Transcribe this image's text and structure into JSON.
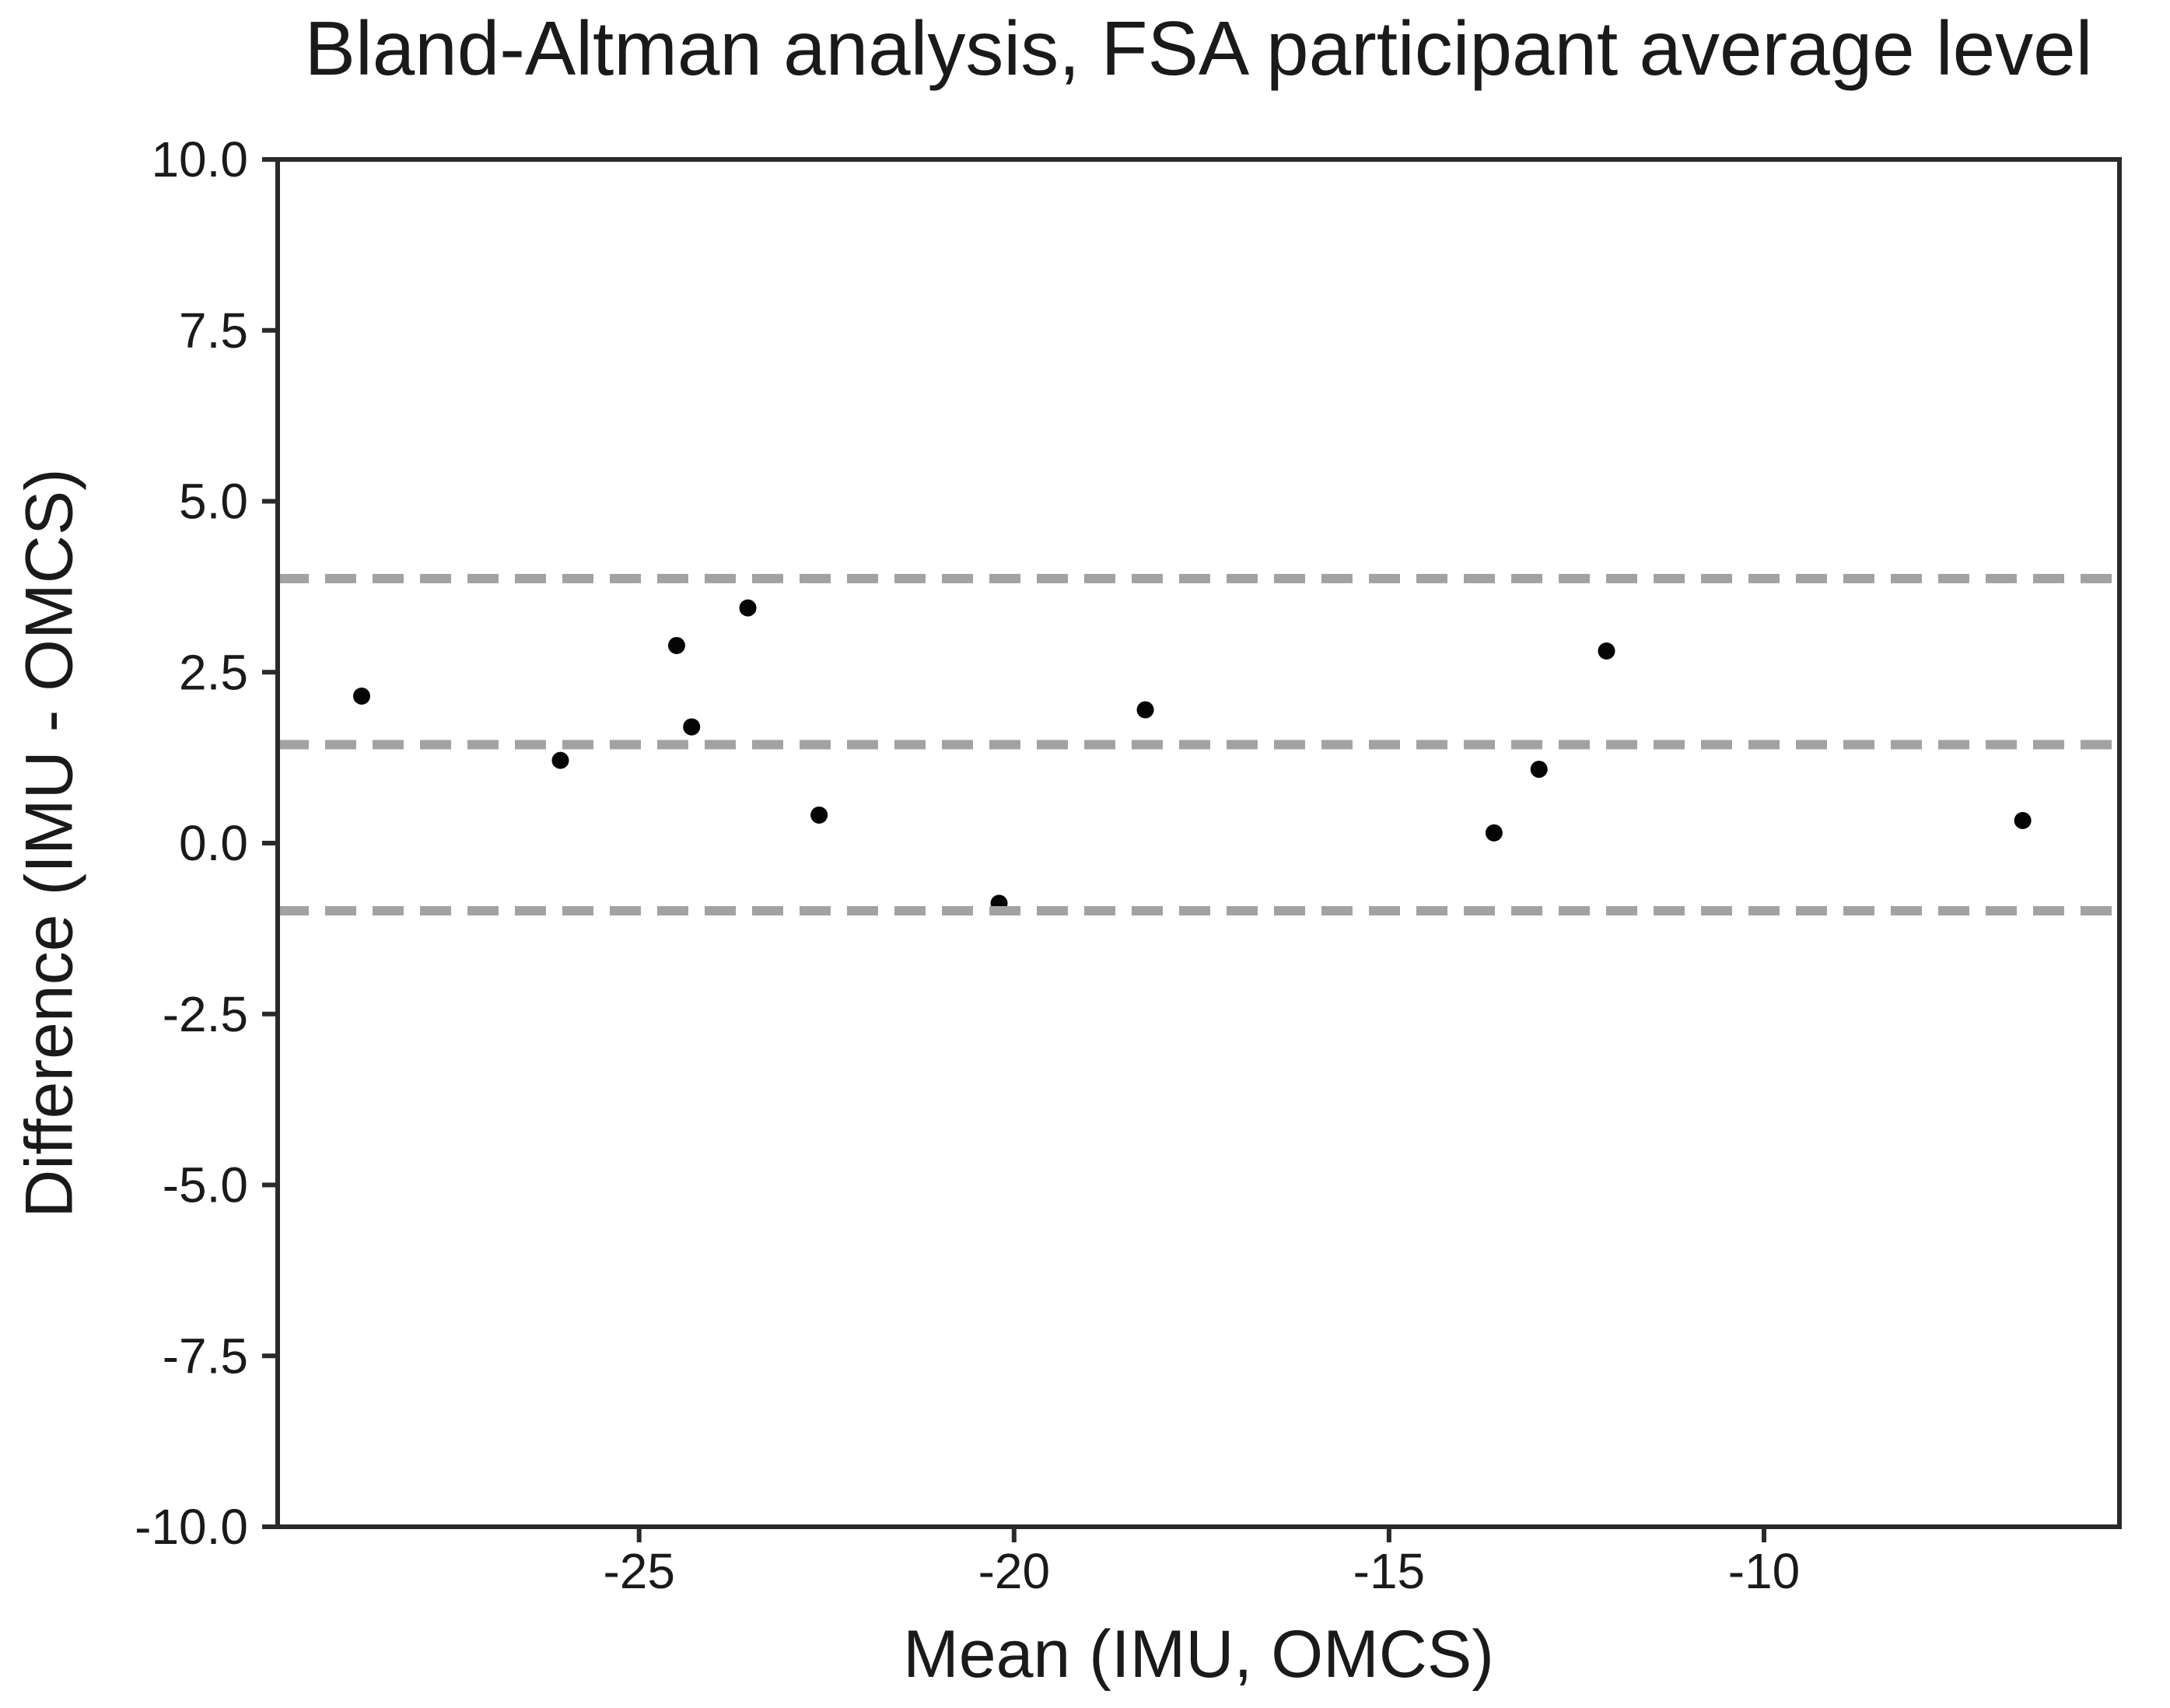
{
  "chart_data": {
    "type": "scatter",
    "title": "Bland-Altman analysis, FSA participant average level",
    "xlabel": "Mean (IMU, OMCS)",
    "ylabel": "Difference (IMU - OMCS)",
    "xlim": [
      -29.82,
      -5.26
    ],
    "ylim": [
      -10.0,
      10.0
    ],
    "grid": false,
    "legend_position": "none",
    "xticks": {
      "values": [
        -25,
        -20,
        -15,
        -10
      ],
      "labels": [
        "-25",
        "-20",
        "-15",
        "-10"
      ]
    },
    "yticks": {
      "values": [
        10.0,
        7.5,
        5.0,
        2.5,
        0.0,
        -2.5,
        -5.0,
        -7.5,
        -10.0
      ],
      "labels": [
        "10.0",
        "7.5",
        "5.0",
        "2.5",
        "0.0",
        "-2.5",
        "-5.0",
        "-7.5",
        "-10.0"
      ]
    },
    "reference_lines": [
      {
        "name": "upper-limit-of-agreement",
        "y": 3.87,
        "style": "dashed"
      },
      {
        "name": "mean-bias",
        "y": 1.44,
        "style": "dashed"
      },
      {
        "name": "lower-limit-of-agreement",
        "y": -0.99,
        "style": "dashed"
      }
    ],
    "points": [
      {
        "x": -28.7,
        "y": 2.15
      },
      {
        "x": -26.05,
        "y": 1.21
      },
      {
        "x": -24.5,
        "y": 2.89
      },
      {
        "x": -24.3,
        "y": 1.7
      },
      {
        "x": -23.55,
        "y": 3.44
      },
      {
        "x": -22.6,
        "y": 0.41
      },
      {
        "x": -20.2,
        "y": -0.88
      },
      {
        "x": -18.25,
        "y": 1.95
      },
      {
        "x": -13.6,
        "y": 0.15
      },
      {
        "x": -13.0,
        "y": 1.08
      },
      {
        "x": -12.1,
        "y": 2.81
      },
      {
        "x": -6.55,
        "y": 0.33
      }
    ]
  },
  "style": {
    "background": "#ffffff",
    "point_color": "#050505",
    "point_radius": 11,
    "axis_color": "#2a2a2a",
    "text_color": "#1a1a1a",
    "dashed_line_color": "#a2a2a2"
  }
}
